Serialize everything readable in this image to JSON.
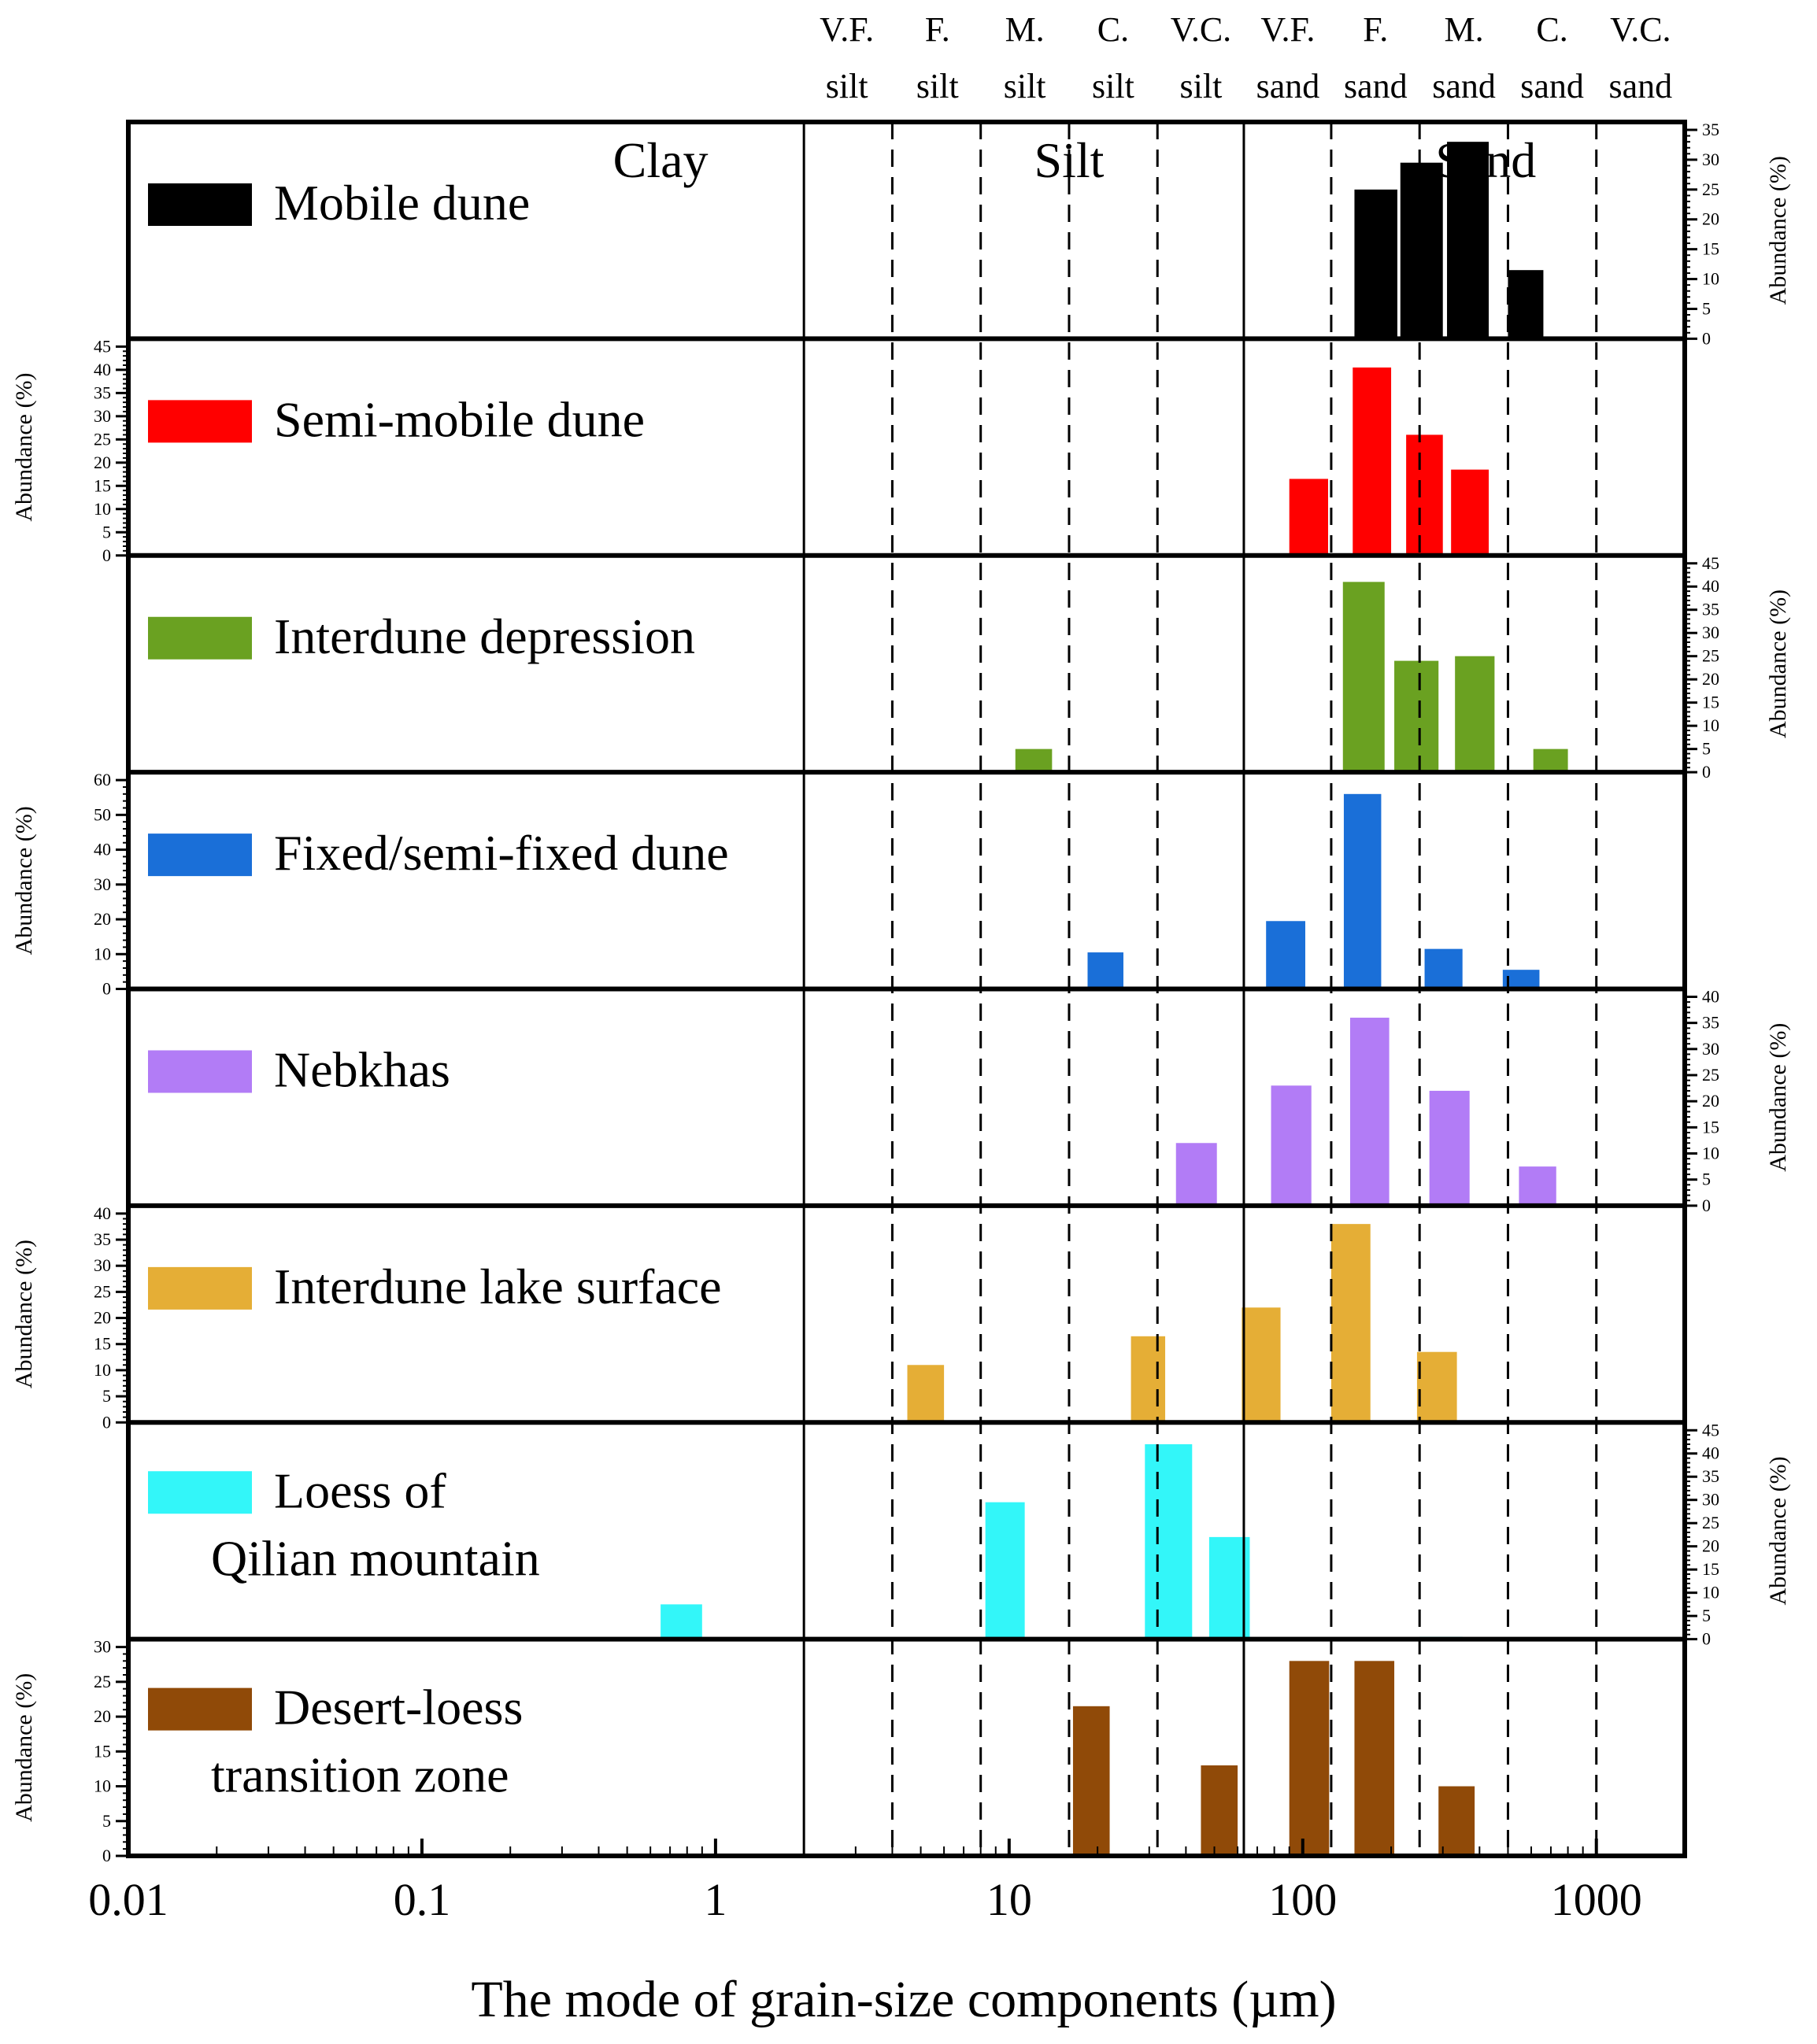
{
  "chart_data": {
    "type": "bar",
    "xscale": "log",
    "xlim": [
      0.01,
      2000
    ],
    "xlabel": "The mode of grain-size components (µm)",
    "ylabel": "Abundance (%)",
    "x_ticks": [
      0.01,
      0.1,
      1,
      10,
      100,
      1000
    ],
    "x_tick_labels": [
      "0.01",
      "0.1",
      "1",
      "10",
      "100",
      "1000"
    ],
    "solid_boundaries": [
      2,
      63
    ],
    "dashed_boundaries": [
      4,
      8,
      16,
      32,
      125,
      250,
      500,
      1000
    ],
    "class_labels": [
      {
        "line1": "V.F.",
        "line2": "silt",
        "x": 2.8
      },
      {
        "line1": "F.",
        "line2": "silt",
        "x": 5.7
      },
      {
        "line1": "M.",
        "line2": "silt",
        "x": 11.3
      },
      {
        "line1": "C.",
        "line2": "silt",
        "x": 22.6
      },
      {
        "line1": "V.C.",
        "line2": "silt",
        "x": 45
      },
      {
        "line1": "V.F.",
        "line2": "sand",
        "x": 89
      },
      {
        "line1": "F.",
        "line2": "sand",
        "x": 177
      },
      {
        "line1": "M.",
        "line2": "sand",
        "x": 354
      },
      {
        "line1": "C.",
        "line2": "sand",
        "x": 707
      },
      {
        "line1": "V.C.",
        "line2": "sand",
        "x": 1414
      }
    ],
    "zones": [
      {
        "label": "Clay",
        "x": 0.65
      },
      {
        "label": "Silt",
        "x": 16
      },
      {
        "label": "Sand",
        "x": 420
      }
    ],
    "panels": [
      {
        "name": "Mobile dune",
        "label_lines": [
          "Mobile dune"
        ],
        "color": "#000000",
        "axis_side": "right",
        "ylim": [
          0,
          35
        ],
        "yticks": [
          0,
          5,
          10,
          15,
          20,
          25,
          30,
          35
        ],
        "bars": [
          {
            "x0": 150,
            "x1": 210,
            "value": 25
          },
          {
            "x0": 215,
            "x1": 300,
            "value": 29.5
          },
          {
            "x0": 310,
            "x1": 430,
            "value": 33
          },
          {
            "x0": 500,
            "x1": 660,
            "value": 11.5
          }
        ]
      },
      {
        "name": "Semi-mobile dune",
        "label_lines": [
          "Semi-mobile dune"
        ],
        "color": "#ff0000",
        "axis_side": "left",
        "ylim": [
          0,
          45
        ],
        "yticks": [
          0,
          5,
          10,
          15,
          20,
          25,
          30,
          35,
          40,
          45
        ],
        "bars": [
          {
            "x0": 90,
            "x1": 122,
            "value": 16.5
          },
          {
            "x0": 148,
            "x1": 200,
            "value": 40.5
          },
          {
            "x0": 225,
            "x1": 300,
            "value": 26
          },
          {
            "x0": 320,
            "x1": 430,
            "value": 18.5
          }
        ]
      },
      {
        "name": "Interdune depression",
        "label_lines": [
          "Interdune depression"
        ],
        "color": "#6aa121",
        "axis_side": "right",
        "ylim": [
          0,
          45
        ],
        "yticks": [
          0,
          5,
          10,
          15,
          20,
          25,
          30,
          35,
          40,
          45
        ],
        "bars": [
          {
            "x0": 10.5,
            "x1": 14,
            "value": 5
          },
          {
            "x0": 137,
            "x1": 190,
            "value": 41
          },
          {
            "x0": 205,
            "x1": 290,
            "value": 24
          },
          {
            "x0": 330,
            "x1": 450,
            "value": 25
          },
          {
            "x0": 610,
            "x1": 800,
            "value": 5
          }
        ]
      },
      {
        "name": "Fixed/semi-fixed dune",
        "label_lines": [
          "Fixed/semi-fixed dune"
        ],
        "color": "#1a6fd8",
        "axis_side": "left",
        "ylim": [
          0,
          60
        ],
        "yticks": [
          0,
          10,
          20,
          30,
          40,
          50,
          60
        ],
        "bars": [
          {
            "x0": 18.5,
            "x1": 24.5,
            "value": 10.5
          },
          {
            "x0": 75,
            "x1": 102,
            "value": 19.5
          },
          {
            "x0": 138,
            "x1": 185,
            "value": 56
          },
          {
            "x0": 260,
            "x1": 350,
            "value": 11.5
          },
          {
            "x0": 480,
            "x1": 640,
            "value": 5.5
          }
        ]
      },
      {
        "name": "Nebkhas",
        "label_lines": [
          "Nebkhas"
        ],
        "color": "#b27cf6",
        "axis_side": "right",
        "ylim": [
          0,
          40
        ],
        "yticks": [
          0,
          5,
          10,
          15,
          20,
          25,
          30,
          35,
          40
        ],
        "bars": [
          {
            "x0": 37,
            "x1": 51,
            "value": 12
          },
          {
            "x0": 78,
            "x1": 107,
            "value": 23
          },
          {
            "x0": 145,
            "x1": 197,
            "value": 36
          },
          {
            "x0": 270,
            "x1": 370,
            "value": 22
          },
          {
            "x0": 545,
            "x1": 730,
            "value": 7.5
          }
        ]
      },
      {
        "name": "Interdune lake surface",
        "label_lines": [
          "Interdune lake surface"
        ],
        "color": "#e5ae36",
        "axis_side": "left",
        "ylim": [
          0,
          40
        ],
        "yticks": [
          0,
          5,
          10,
          15,
          20,
          25,
          30,
          35,
          40
        ],
        "bars": [
          {
            "x0": 4.5,
            "x1": 6,
            "value": 11
          },
          {
            "x0": 26,
            "x1": 34,
            "value": 16.5
          },
          {
            "x0": 62,
            "x1": 84,
            "value": 22
          },
          {
            "x0": 125,
            "x1": 170,
            "value": 38
          },
          {
            "x0": 245,
            "x1": 335,
            "value": 13.5
          }
        ]
      },
      {
        "name": "Loess of Qilian mountain",
        "label_lines": [
          "Loess of",
          "Qilian mountain"
        ],
        "color": "#33f6f9",
        "axis_side": "right",
        "ylim": [
          0,
          45
        ],
        "yticks": [
          0,
          5,
          10,
          15,
          20,
          25,
          30,
          35,
          40,
          45
        ],
        "bars": [
          {
            "x0": 0.65,
            "x1": 0.9,
            "value": 7.5
          },
          {
            "x0": 8.3,
            "x1": 11.3,
            "value": 29.5
          },
          {
            "x0": 29,
            "x1": 42,
            "value": 42
          },
          {
            "x0": 48,
            "x1": 66,
            "value": 22
          },
          {
            "x0": 250,
            "x1": 350,
            "value": 0.5
          }
        ]
      },
      {
        "name": "Desert-loess transition zone",
        "label_lines": [
          "Desert-loess",
          "transition zone"
        ],
        "color": "#904a08",
        "axis_side": "left",
        "ylim": [
          0,
          30
        ],
        "yticks": [
          0,
          5,
          10,
          15,
          20,
          25,
          30
        ],
        "bars": [
          {
            "x0": 16.5,
            "x1": 22,
            "value": 21.5
          },
          {
            "x0": 45,
            "x1": 60,
            "value": 13
          },
          {
            "x0": 90,
            "x1": 123,
            "value": 28
          },
          {
            "x0": 150,
            "x1": 205,
            "value": 28
          },
          {
            "x0": 290,
            "x1": 385,
            "value": 10
          }
        ]
      }
    ]
  }
}
